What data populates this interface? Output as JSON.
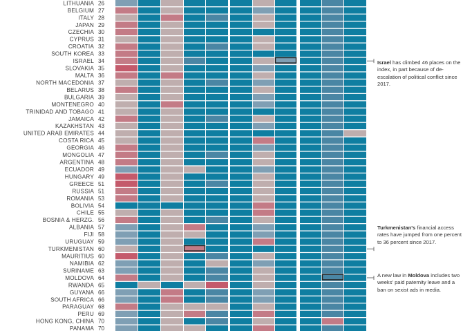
{
  "colors": {
    "teal": "#0f7ea1",
    "steel": "#4a86a4",
    "greyblue": "#7f9fb4",
    "beige": "#bfaeae",
    "pink": "#c37b86",
    "red": "#c45a6b",
    "text": "#3a3a3a",
    "annotation_line": "#555555"
  },
  "chart_data": {
    "type": "heatmap",
    "description_levels": [
      "teal",
      "steel",
      "greyblue",
      "beige",
      "pink",
      "red"
    ],
    "rows": [
      {
        "country": "LITHUANIA",
        "rank": "26",
        "cells": [
          "greyblue",
          "teal",
          "beige",
          "teal",
          "teal",
          "teal",
          "beige",
          "teal",
          "teal",
          "steel",
          "teal"
        ]
      },
      {
        "country": "BELGIUM",
        "rank": "27",
        "cells": [
          "pink",
          "teal",
          "beige",
          "teal",
          "teal",
          "teal",
          "greyblue",
          "teal",
          "teal",
          "steel",
          "teal"
        ]
      },
      {
        "country": "ITALY",
        "rank": "28",
        "cells": [
          "beige",
          "teal",
          "pink",
          "teal",
          "steel",
          "teal",
          "beige",
          "teal",
          "teal",
          "steel",
          "teal"
        ]
      },
      {
        "country": "JAPAN",
        "rank": "29",
        "cells": [
          "pink",
          "teal",
          "beige",
          "teal",
          "teal",
          "teal",
          "beige",
          "teal",
          "teal",
          "steel",
          "teal"
        ]
      },
      {
        "country": "CZECHIA",
        "rank": "30",
        "cells": [
          "pink",
          "teal",
          "beige",
          "teal",
          "teal",
          "teal",
          "teal",
          "teal",
          "teal",
          "steel",
          "teal"
        ]
      },
      {
        "country": "CYPRUS",
        "rank": "31",
        "cells": [
          "beige",
          "teal",
          "beige",
          "teal",
          "teal",
          "teal",
          "beige",
          "teal",
          "teal",
          "steel",
          "teal"
        ]
      },
      {
        "country": "CROATIA",
        "rank": "32",
        "cells": [
          "pink",
          "teal",
          "beige",
          "teal",
          "steel",
          "teal",
          "beige",
          "teal",
          "teal",
          "steel",
          "teal"
        ]
      },
      {
        "country": "SOUTH KOREA",
        "rank": "33",
        "cells": [
          "pink",
          "teal",
          "beige",
          "teal",
          "teal",
          "teal",
          "teal",
          "teal",
          "teal",
          "steel",
          "teal"
        ]
      },
      {
        "country": "ISRAEL",
        "rank": "34",
        "cells": [
          "pink",
          "teal",
          "beige",
          "steel",
          "teal",
          "teal",
          "beige",
          "greyblue",
          "teal",
          "steel",
          "teal"
        ]
      },
      {
        "country": "SLOVAKIA",
        "rank": "35",
        "cells": [
          "red",
          "teal",
          "beige",
          "teal",
          "teal",
          "teal",
          "greyblue",
          "teal",
          "teal",
          "steel",
          "teal"
        ]
      },
      {
        "country": "MALTA",
        "rank": "36",
        "cells": [
          "pink",
          "teal",
          "pink",
          "teal",
          "teal",
          "teal",
          "beige",
          "teal",
          "teal",
          "steel",
          "teal"
        ]
      },
      {
        "country": "NORTH MACEDONIA",
        "rank": "37",
        "cells": [
          "beige",
          "teal",
          "beige",
          "teal",
          "steel",
          "teal",
          "greyblue",
          "teal",
          "teal",
          "steel",
          "teal"
        ]
      },
      {
        "country": "BELARUS",
        "rank": "38",
        "cells": [
          "pink",
          "teal",
          "beige",
          "teal",
          "teal",
          "teal",
          "beige",
          "teal",
          "teal",
          "steel",
          "teal"
        ]
      },
      {
        "country": "BULGARIA",
        "rank": "39",
        "cells": [
          "beige",
          "teal",
          "beige",
          "teal",
          "teal",
          "teal",
          "greyblue",
          "teal",
          "teal",
          "steel",
          "teal"
        ]
      },
      {
        "country": "MONTENEGRO",
        "rank": "40",
        "cells": [
          "beige",
          "teal",
          "pink",
          "teal",
          "teal",
          "teal",
          "greyblue",
          "teal",
          "teal",
          "steel",
          "teal"
        ]
      },
      {
        "country": "TRINIDAD AND TOBAGO",
        "rank": "41",
        "cells": [
          "beige",
          "teal",
          "beige",
          "teal",
          "teal",
          "teal",
          "teal",
          "teal",
          "teal",
          "steel",
          "teal"
        ]
      },
      {
        "country": "JAMAICA",
        "rank": "42",
        "cells": [
          "pink",
          "teal",
          "beige",
          "teal",
          "steel",
          "teal",
          "beige",
          "teal",
          "teal",
          "steel",
          "teal"
        ]
      },
      {
        "country": "KAZAKHSTAN",
        "rank": "43",
        "cells": [
          "beige",
          "teal",
          "beige",
          "teal",
          "teal",
          "teal",
          "greyblue",
          "teal",
          "teal",
          "steel",
          "teal"
        ]
      },
      {
        "country": "UNITED ARAB EMIRATES",
        "rank": "44",
        "cells": [
          "beige",
          "teal",
          "beige",
          "teal",
          "teal",
          "teal",
          "teal",
          "teal",
          "teal",
          "steel",
          "beige"
        ]
      },
      {
        "country": "COSTA RICA",
        "rank": "45",
        "cells": [
          "beige",
          "teal",
          "beige",
          "teal",
          "teal",
          "teal",
          "pink",
          "teal",
          "teal",
          "steel",
          "teal"
        ]
      },
      {
        "country": "GEORGIA",
        "rank": "46",
        "cells": [
          "pink",
          "teal",
          "beige",
          "teal",
          "teal",
          "teal",
          "greyblue",
          "teal",
          "teal",
          "steel",
          "teal"
        ]
      },
      {
        "country": "MONGOLIA",
        "rank": "47",
        "cells": [
          "pink",
          "teal",
          "beige",
          "teal",
          "steel",
          "teal",
          "beige",
          "teal",
          "teal",
          "steel",
          "teal"
        ]
      },
      {
        "country": "ARGENTINA",
        "rank": "48",
        "cells": [
          "pink",
          "teal",
          "beige",
          "teal",
          "teal",
          "teal",
          "beige",
          "teal",
          "teal",
          "steel",
          "teal"
        ]
      },
      {
        "country": "ECUADOR",
        "rank": "49",
        "cells": [
          "greyblue",
          "teal",
          "beige",
          "beige",
          "teal",
          "teal",
          "greyblue",
          "teal",
          "teal",
          "steel",
          "teal"
        ]
      },
      {
        "country": "HUNGARY",
        "rank": "49",
        "cells": [
          "red",
          "teal",
          "beige",
          "teal",
          "teal",
          "teal",
          "beige",
          "teal",
          "teal",
          "steel",
          "teal"
        ]
      },
      {
        "country": "GREECE",
        "rank": "51",
        "cells": [
          "red",
          "teal",
          "beige",
          "teal",
          "steel",
          "teal",
          "beige",
          "teal",
          "teal",
          "steel",
          "teal"
        ]
      },
      {
        "country": "RUSSIA",
        "rank": "51",
        "cells": [
          "pink",
          "teal",
          "beige",
          "teal",
          "teal",
          "teal",
          "beige",
          "teal",
          "teal",
          "steel",
          "teal"
        ]
      },
      {
        "country": "ROMANIA",
        "rank": "53",
        "cells": [
          "pink",
          "teal",
          "beige",
          "teal",
          "teal",
          "teal",
          "beige",
          "teal",
          "teal",
          "steel",
          "teal"
        ]
      },
      {
        "country": "BOLIVIA",
        "rank": "54",
        "cells": [
          "teal",
          "teal",
          "teal",
          "teal",
          "teal",
          "teal",
          "pink",
          "teal",
          "teal",
          "steel",
          "teal"
        ]
      },
      {
        "country": "CHILE",
        "rank": "55",
        "cells": [
          "beige",
          "teal",
          "beige",
          "teal",
          "teal",
          "teal",
          "pink",
          "teal",
          "teal",
          "steel",
          "teal"
        ]
      },
      {
        "country": "BOSNIA & HERZG.",
        "rank": "56",
        "cells": [
          "pink",
          "teal",
          "beige",
          "teal",
          "steel",
          "teal",
          "beige",
          "teal",
          "teal",
          "steel",
          "teal"
        ]
      },
      {
        "country": "ALBANIA",
        "rank": "57",
        "cells": [
          "greyblue",
          "teal",
          "beige",
          "pink",
          "teal",
          "teal",
          "greyblue",
          "teal",
          "teal",
          "steel",
          "teal"
        ]
      },
      {
        "country": "FIJI",
        "rank": "58",
        "cells": [
          "greyblue",
          "teal",
          "beige",
          "beige",
          "teal",
          "teal",
          "greyblue",
          "teal",
          "teal",
          "steel",
          "teal"
        ]
      },
      {
        "country": "URUGUAY",
        "rank": "59",
        "cells": [
          "greyblue",
          "teal",
          "beige",
          "teal",
          "teal",
          "teal",
          "pink",
          "teal",
          "teal",
          "steel",
          "teal"
        ]
      },
      {
        "country": "TURKMENISTAN",
        "rank": "60",
        "cells": [
          "beige",
          "teal",
          "beige",
          "pink",
          "teal",
          "teal",
          "teal",
          "teal",
          "teal",
          "steel",
          "teal"
        ]
      },
      {
        "country": "MAURITIUS",
        "rank": "60",
        "cells": [
          "red",
          "teal",
          "beige",
          "teal",
          "steel",
          "teal",
          "beige",
          "teal",
          "teal",
          "steel",
          "teal"
        ]
      },
      {
        "country": "NAMIBIA",
        "rank": "62",
        "cells": [
          "greyblue",
          "teal",
          "beige",
          "teal",
          "beige",
          "teal",
          "greyblue",
          "teal",
          "teal",
          "steel",
          "teal"
        ]
      },
      {
        "country": "SURINAME",
        "rank": "63",
        "cells": [
          "greyblue",
          "teal",
          "beige",
          "teal",
          "steel",
          "teal",
          "beige",
          "teal",
          "teal",
          "steel",
          "teal"
        ]
      },
      {
        "country": "MOLDOVA",
        "rank": "64",
        "cells": [
          "pink",
          "teal",
          "beige",
          "teal",
          "steel",
          "teal",
          "beige",
          "teal",
          "teal",
          "steel",
          "teal"
        ]
      },
      {
        "country": "RWANDA",
        "rank": "65",
        "cells": [
          "teal",
          "beige",
          "teal",
          "beige",
          "red",
          "teal",
          "beige",
          "teal",
          "teal",
          "steel",
          "teal"
        ]
      },
      {
        "country": "GUYANA",
        "rank": "66",
        "cells": [
          "greyblue",
          "teal",
          "pink",
          "teal",
          "steel",
          "teal",
          "greyblue",
          "teal",
          "teal",
          "steel",
          "teal"
        ]
      },
      {
        "country": "SOUTH AFRICA",
        "rank": "66",
        "cells": [
          "greyblue",
          "teal",
          "pink",
          "teal",
          "steel",
          "teal",
          "greyblue",
          "teal",
          "teal",
          "steel",
          "teal"
        ]
      },
      {
        "country": "PARAGUAY",
        "rank": "68",
        "cells": [
          "pink",
          "teal",
          "beige",
          "beige",
          "beige",
          "teal",
          "beige",
          "teal",
          "teal",
          "steel",
          "teal"
        ]
      },
      {
        "country": "PERU",
        "rank": "69",
        "cells": [
          "greyblue",
          "teal",
          "beige",
          "pink",
          "steel",
          "teal",
          "pink",
          "teal",
          "teal",
          "steel",
          "teal"
        ]
      },
      {
        "country": "HONG KONG, CHINA",
        "rank": "70",
        "cells": [
          "greyblue",
          "teal",
          "beige",
          "teal",
          "steel",
          "teal",
          "beige",
          "teal",
          "teal",
          "pink",
          "teal"
        ]
      },
      {
        "country": "PANAMA",
        "rank": "70",
        "cells": [
          "greyblue",
          "teal",
          "beige",
          "beige",
          "teal",
          "teal",
          "pink",
          "teal",
          "teal",
          "steel",
          "teal"
        ]
      }
    ],
    "highlights": [
      {
        "country": "ISRAEL",
        "column": 7
      },
      {
        "country": "TURKMENISTAN",
        "column": 3
      },
      {
        "country": "MOLDOVA",
        "column": 9
      }
    ]
  },
  "annotations": [
    {
      "id": "israel",
      "row": "ISRAEL",
      "bold": "Israel",
      "text": " has climbed 46 places on the index, in part because of de-escalation of political conflict since 2017."
    },
    {
      "id": "turkmenistan",
      "row": "TURKMENISTAN",
      "bold": "Turkmenistan's",
      "text": " financial access rates have jumped from one percent to 36 percent since 2017."
    },
    {
      "id": "moldova",
      "row": "MOLDOVA",
      "prefix": "A new law in ",
      "bold": "Moldova",
      "text": " includes two weeks' paid paternity leave and a ban on sexist ads in media."
    }
  ]
}
